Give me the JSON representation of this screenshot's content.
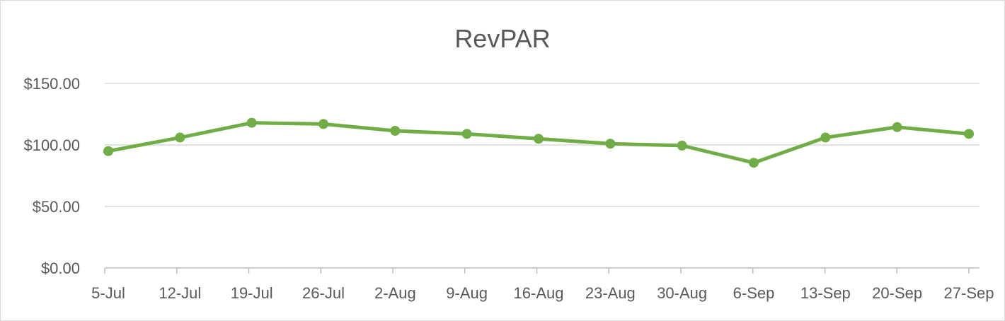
{
  "chart_data": {
    "type": "line",
    "title": "RevPAR",
    "xlabel": "",
    "ylabel": "",
    "categories": [
      "5-Jul",
      "12-Jul",
      "19-Jul",
      "26-Jul",
      "2-Aug",
      "9-Aug",
      "16-Aug",
      "23-Aug",
      "30-Aug",
      "6-Sep",
      "13-Sep",
      "20-Sep",
      "27-Sep"
    ],
    "series": [
      {
        "values": [
          95,
          106,
          118,
          117,
          111.5,
          109,
          105,
          101,
          99.5,
          85.5,
          106,
          114.5,
          109
        ],
        "color": "#70ad47"
      }
    ],
    "y_ticks": [
      "$0.00",
      "$50.00",
      "$100.00",
      "$150.00"
    ],
    "ylim": [
      0,
      150
    ],
    "grid": true,
    "legend": "none"
  }
}
